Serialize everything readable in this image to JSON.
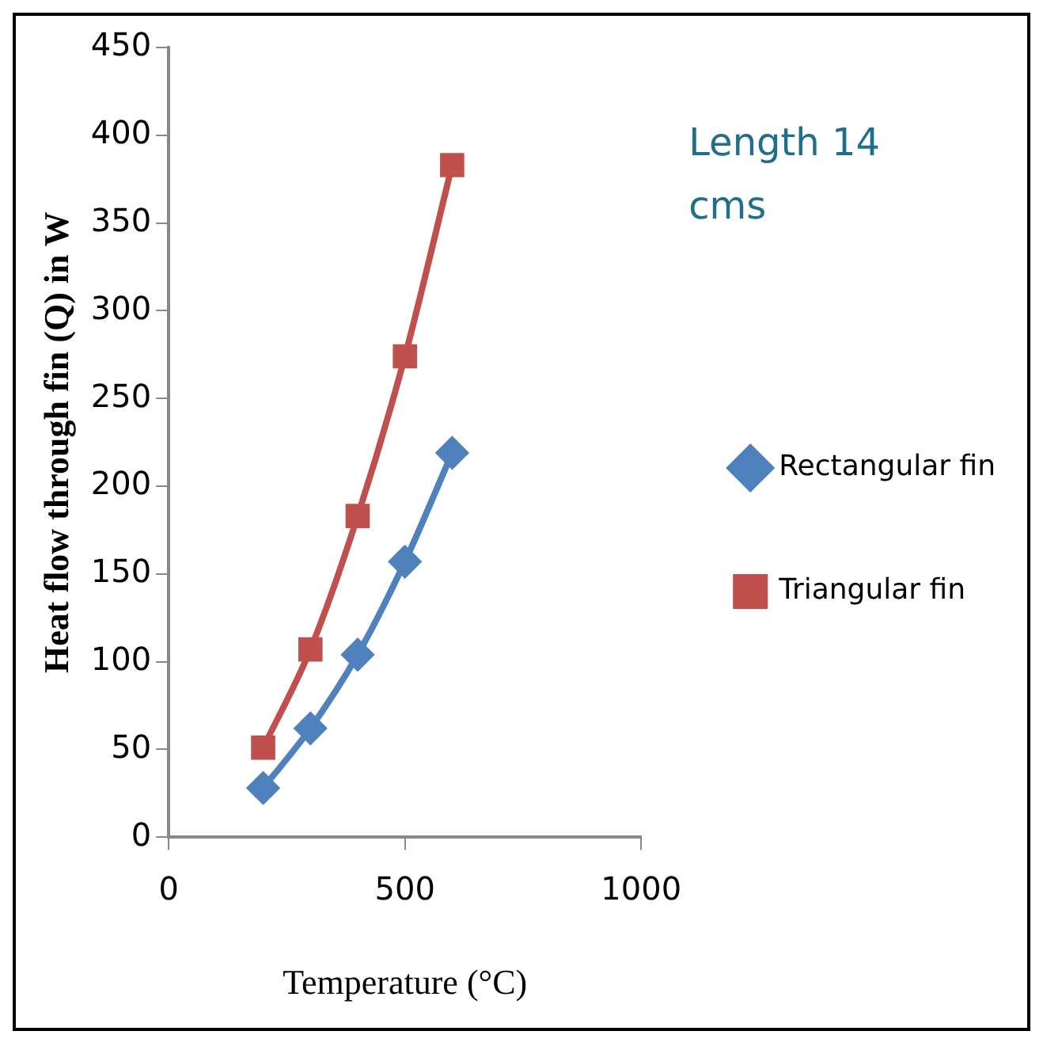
{
  "chart_data": {
    "type": "line",
    "xlabel": "Temperature (°C)",
    "ylabel": "Heat flow through fin (Q) in W",
    "annotations": [
      "Length      14 cms"
    ],
    "x": [
      200,
      300,
      400,
      500,
      600
    ],
    "series": [
      {
        "name": "Rectangular fin",
        "color": "#4f81bd",
        "marker": "diamond",
        "values": [
          28,
          62,
          104,
          157,
          219
        ]
      },
      {
        "name": "Triangular fin",
        "color": "#c0504d",
        "marker": "square",
        "values": [
          51,
          107,
          183,
          274,
          383
        ]
      }
    ],
    "xlim": [
      0,
      1000
    ],
    "xticks": [
      0,
      500,
      1000
    ],
    "ylim": [
      0,
      450
    ],
    "yticks": [
      0,
      50,
      100,
      150,
      200,
      250,
      300,
      350,
      400,
      450
    ],
    "grid": false,
    "legend": "right",
    "line_style": "solid"
  }
}
